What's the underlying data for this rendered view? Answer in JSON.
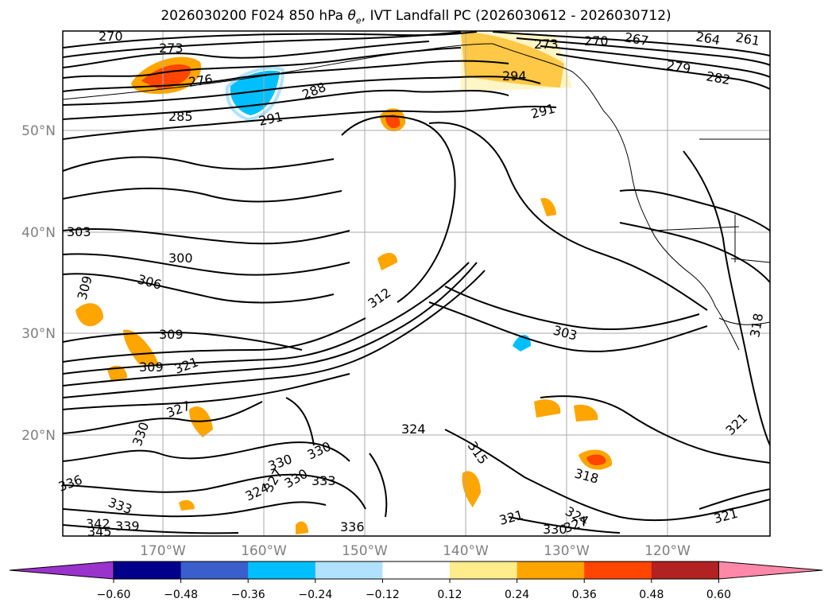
{
  "title_main": "2026030200 F024 850 hPa ",
  "title_theta": "θ",
  "title_sub": "e",
  "title_rest": ", IVT Landfall PC (2026030612 - 2026030712)",
  "lat_labels": [
    "50°N",
    "40°N",
    "30°N",
    "20°N"
  ],
  "lon_labels": [
    "170°W",
    "160°W",
    "150°W",
    "140°W",
    "130°W",
    "120°W"
  ],
  "contour_labels": [
    "270",
    "273",
    "276",
    "285",
    "288",
    "291",
    "264",
    "261",
    "267",
    "270",
    "273",
    "279",
    "282",
    "291",
    "294",
    "303",
    "300",
    "306",
    "309",
    "309",
    "309",
    "321",
    "327",
    "330",
    "330",
    "330",
    "333",
    "336",
    "333",
    "339",
    "345",
    "342",
    "324",
    "327",
    "330",
    "324",
    "315",
    "303",
    "321",
    "318",
    "321",
    "324",
    "327",
    "330",
    "318",
    "321",
    "336",
    "312"
  ],
  "colorbar": {
    "colors": [
      "#9933cc",
      "#00008b",
      "#3a5fcd",
      "#00bfff",
      "#b0e2ff",
      "#ffffff",
      "#ffec8b",
      "#ffa500",
      "#ff4500",
      "#b22222",
      "#ff88a8"
    ],
    "tick_labels": [
      "−0.60",
      "−0.48",
      "−0.36",
      "−0.24",
      "−0.12",
      "0.12",
      "0.24",
      "0.36",
      "0.48",
      "0.60"
    ]
  }
}
